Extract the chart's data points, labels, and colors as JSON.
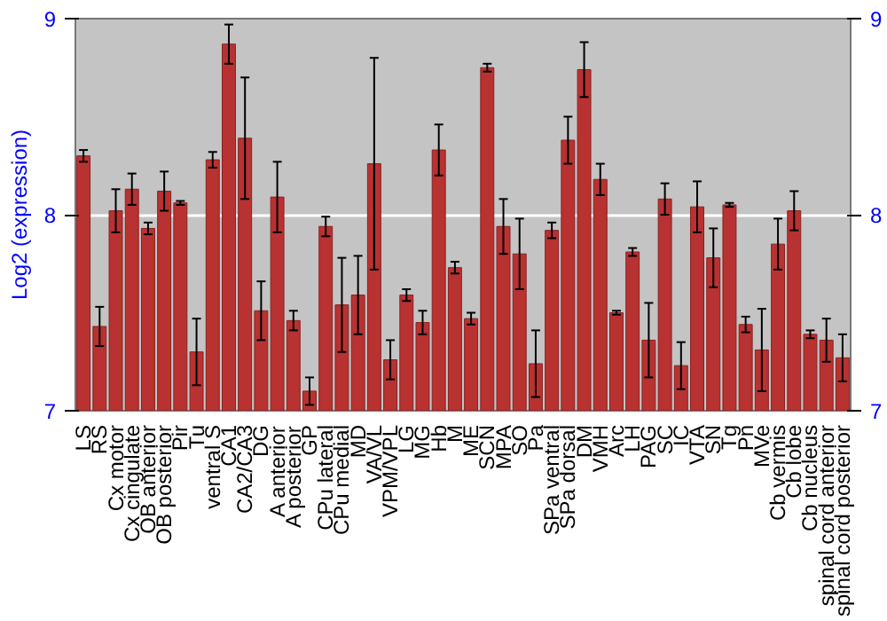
{
  "chart_data": {
    "type": "bar",
    "ylabel": "Log2 (expression)",
    "categories": [
      "LS",
      "RS",
      "Cx motor",
      "Cx cingulate",
      "OB anterior",
      "OB posterior",
      "Pir",
      "Tu",
      "ventral S",
      "CA1",
      "CA2/CA3",
      "DG",
      "A anterior",
      "A posterior",
      "GP",
      "CPu lateral",
      "CPu medial",
      "MD",
      "VA/VL",
      "VPM/VPL",
      "LG",
      "MG",
      "Hb",
      "M",
      "ME",
      "SCN",
      "MPA",
      "SO",
      "Pa",
      "SPa ventral",
      "SPa dorsal",
      "DM",
      "VMH",
      "Arc",
      "LH",
      "PAG",
      "SC",
      "IC",
      "VTA",
      "SN",
      "Tg",
      "Pn",
      "MVe",
      "Cb vermis",
      "Cb lobe",
      "Cb nucleus",
      "spinal cord anterior",
      "spinal cord posterior"
    ],
    "values": [
      8.3,
      7.43,
      8.02,
      8.13,
      7.93,
      8.12,
      8.06,
      7.3,
      8.28,
      8.87,
      8.39,
      7.51,
      8.09,
      7.46,
      7.1,
      7.94,
      7.54,
      7.59,
      8.26,
      7.26,
      7.59,
      7.45,
      8.33,
      7.73,
      7.47,
      8.75,
      7.94,
      7.8,
      7.24,
      7.92,
      8.38,
      8.74,
      8.18,
      7.5,
      7.81,
      7.36,
      8.08,
      7.23,
      8.04,
      7.78,
      8.05,
      7.44,
      7.31,
      7.85,
      8.02,
      7.39,
      7.36,
      7.27
    ],
    "errors": [
      0.03,
      0.1,
      0.11,
      0.08,
      0.03,
      0.1,
      0.01,
      0.17,
      0.04,
      0.1,
      0.31,
      0.15,
      0.18,
      0.05,
      0.07,
      0.05,
      0.24,
      0.2,
      0.54,
      0.1,
      0.03,
      0.06,
      0.13,
      0.03,
      0.03,
      0.02,
      0.14,
      0.18,
      0.17,
      0.04,
      0.12,
      0.14,
      0.08,
      0.01,
      0.02,
      0.19,
      0.08,
      0.12,
      0.13,
      0.15,
      0.01,
      0.04,
      0.21,
      0.13,
      0.1,
      0.02,
      0.11,
      0.12
    ],
    "color": "#b83232",
    "ylim": [
      7,
      9
    ],
    "yticks": [
      7,
      8,
      9
    ],
    "y2lim": [
      7,
      9
    ],
    "y2ticks": [
      7,
      8,
      9
    ],
    "grid": "y"
  }
}
